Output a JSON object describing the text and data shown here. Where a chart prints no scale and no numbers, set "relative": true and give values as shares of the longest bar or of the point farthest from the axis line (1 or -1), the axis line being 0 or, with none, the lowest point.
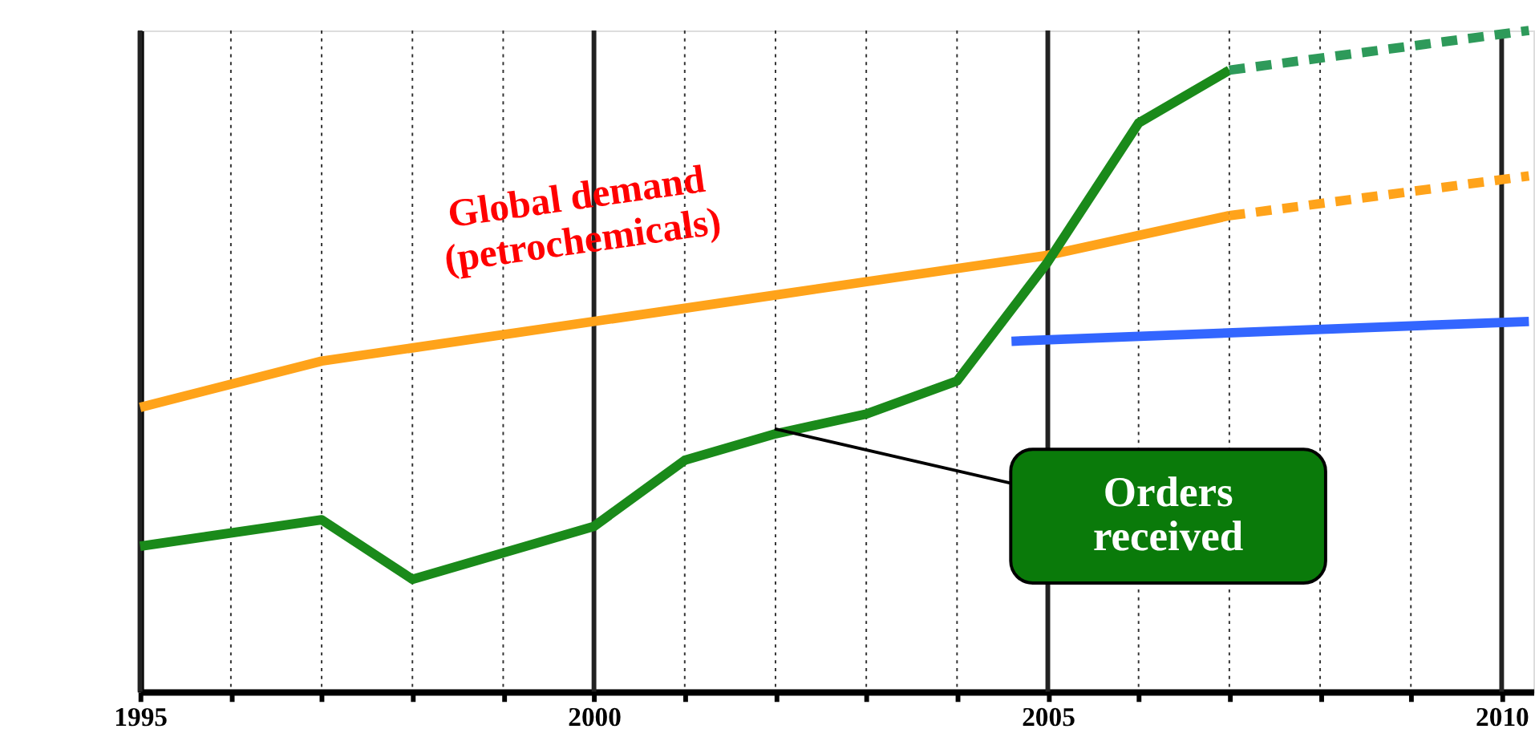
{
  "chart_data": {
    "type": "line",
    "relative": true,
    "xlim": [
      1995,
      2010.35
    ],
    "xticks": [
      1995,
      {
        "value": 1996,
        "label": null
      },
      {
        "value": 1997,
        "label": null
      },
      {
        "value": 1998,
        "label": null
      },
      {
        "value": 1999,
        "label": null
      },
      2000,
      {
        "value": 2001,
        "label": null
      },
      {
        "value": 2002,
        "label": null
      },
      {
        "value": 2003,
        "label": null
      },
      {
        "value": 2004,
        "label": null
      },
      2005,
      {
        "value": 2006,
        "label": null
      },
      {
        "value": 2007,
        "label": null
      },
      {
        "value": 2008,
        "label": null
      },
      {
        "value": 2009,
        "label": null
      },
      2010
    ],
    "grid": "x",
    "series": [
      {
        "color": "#ffa31a",
        "x": [
          1995,
          1997,
          2000,
          2002,
          2005,
          2007
        ],
        "values": [
          0.43,
          0.5,
          0.56,
          0.6,
          0.66,
          0.72
        ]
      },
      {
        "color": "#ffa31a",
        "line_style": "dashed",
        "x": [
          2007,
          2010.3
        ],
        "values": [
          0.72,
          0.78
        ]
      },
      {
        "color": "#1a8a1a",
        "x": [
          1995,
          1997,
          1998,
          1999,
          2000,
          2001,
          2002,
          2003,
          2004,
          2005,
          2006,
          2007
        ],
        "values": [
          0.22,
          0.26,
          0.17,
          0.21,
          0.25,
          0.35,
          0.39,
          0.42,
          0.47,
          0.65,
          0.86,
          0.94
        ]
      },
      {
        "color": "#2e9a5a",
        "line_style": "dashed",
        "x": [
          2007,
          2010.3
        ],
        "values": [
          0.94,
          1.0
        ]
      },
      {
        "color": "#3366ff",
        "x": [
          2004.6,
          2010.3
        ],
        "values": [
          0.53,
          0.56
        ]
      }
    ],
    "annotations": [
      {
        "text": "Global demand\n(petrochemicals)",
        "x": 2000,
        "y": 0.56
      },
      "Orders received"
    ]
  }
}
